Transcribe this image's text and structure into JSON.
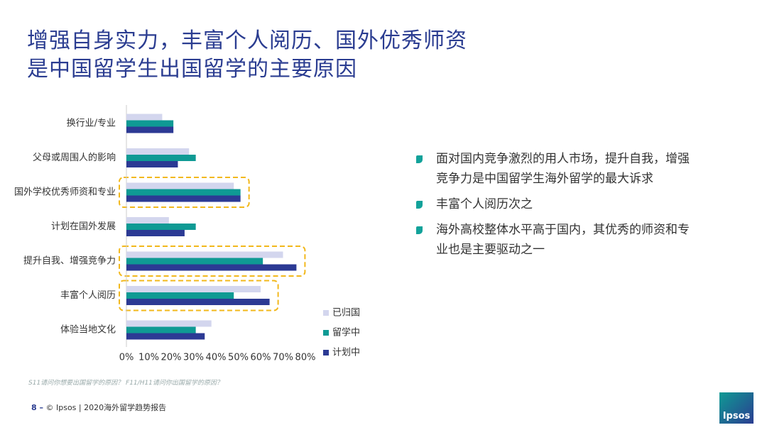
{
  "slide": {
    "title": [
      "增强自身实力，丰富个人阅历、国外优秀师资",
      "是中国留学生出国留学的主要原因"
    ],
    "bullets": [
      "面对国内竞争激烈的用人市场，提升自我，增强竞争力是中国留学生海外留学的最大诉求",
      "丰富个人阅历次之",
      "海外高校整体水平高于国内，其优秀的师资和专业也是主要驱动之一"
    ],
    "footnote": "S11请问你想要出国留学的原因？ F11/H11请问你出国留学的原因？",
    "footer_page": "8 –",
    "footer_text": "© Ipsos | 2020海外留学趋势报告",
    "logo": "Ipsos"
  },
  "chart_data": {
    "type": "hbar",
    "categories": [
      "换行业/专业",
      "父母或周围人的影响",
      "国外学校优秀师资和专业",
      "计划在国外发展",
      "提升自我、增强竞争力",
      "丰富个人阅历",
      "体验当地文化"
    ],
    "series": [
      {
        "name": "已归国",
        "color": "#d3d6ee",
        "values": [
          16,
          28,
          48,
          19,
          70,
          60,
          38
        ]
      },
      {
        "name": "留学中",
        "color": "#0f9a94",
        "values": [
          21,
          31,
          51,
          31,
          61,
          48,
          31
        ]
      },
      {
        "name": "计划中",
        "color": "#2c3a94",
        "values": [
          21,
          23,
          51,
          26,
          76,
          64,
          35
        ]
      }
    ],
    "xlim": [
      0,
      80
    ],
    "xticks": [
      {
        "value": 0,
        "label": "0%"
      },
      {
        "value": 10,
        "label": "10%"
      },
      {
        "value": 20,
        "label": "20%"
      },
      {
        "value": 30,
        "label": "30%"
      },
      {
        "value": 40,
        "label": "40%"
      },
      {
        "value": 50,
        "label": "50%"
      },
      {
        "value": 60,
        "label": "60%"
      },
      {
        "value": 70,
        "label": "70%"
      },
      {
        "value": 80,
        "label": "80%"
      }
    ],
    "grid": false,
    "highlighted": [
      2,
      4,
      5
    ],
    "highlight_color": "#f2b81c"
  }
}
